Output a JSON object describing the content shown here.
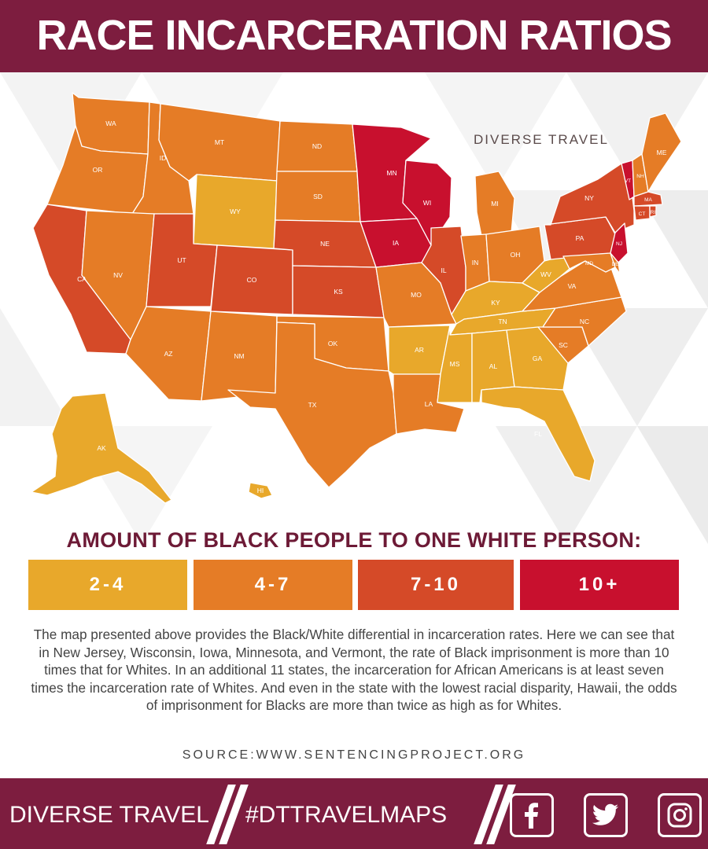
{
  "header": {
    "title": "RACE INCARCERATION RATIOS"
  },
  "brand_tag": "DIVERSE TRAVEL",
  "legend": {
    "title": "AMOUNT OF BLACK PEOPLE TO ONE WHITE PERSON:",
    "items": [
      {
        "label": "2-4",
        "color": "#e8a82b"
      },
      {
        "label": "4-7",
        "color": "#e57c26"
      },
      {
        "label": "7-10",
        "color": "#d54a28"
      },
      {
        "label": "10+",
        "color": "#c8102e"
      }
    ]
  },
  "states": [
    {
      "abbr": "WA",
      "bucket": "4-7"
    },
    {
      "abbr": "OR",
      "bucket": "4-7"
    },
    {
      "abbr": "CA",
      "bucket": "7-10"
    },
    {
      "abbr": "ID",
      "bucket": "4-7"
    },
    {
      "abbr": "NV",
      "bucket": "4-7"
    },
    {
      "abbr": "MT",
      "bucket": "4-7"
    },
    {
      "abbr": "WY",
      "bucket": "2-4"
    },
    {
      "abbr": "UT",
      "bucket": "7-10"
    },
    {
      "abbr": "CO",
      "bucket": "7-10"
    },
    {
      "abbr": "AZ",
      "bucket": "4-7"
    },
    {
      "abbr": "NM",
      "bucket": "4-7"
    },
    {
      "abbr": "ND",
      "bucket": "4-7"
    },
    {
      "abbr": "SD",
      "bucket": "4-7"
    },
    {
      "abbr": "NE",
      "bucket": "7-10"
    },
    {
      "abbr": "KS",
      "bucket": "7-10"
    },
    {
      "abbr": "OK",
      "bucket": "4-7"
    },
    {
      "abbr": "TX",
      "bucket": "4-7"
    },
    {
      "abbr": "MN",
      "bucket": "10+"
    },
    {
      "abbr": "IA",
      "bucket": "10+"
    },
    {
      "abbr": "MO",
      "bucket": "4-7"
    },
    {
      "abbr": "AR",
      "bucket": "2-4"
    },
    {
      "abbr": "LA",
      "bucket": "4-7"
    },
    {
      "abbr": "WI",
      "bucket": "10+"
    },
    {
      "abbr": "IL",
      "bucket": "7-10"
    },
    {
      "abbr": "MI",
      "bucket": "4-7"
    },
    {
      "abbr": "IN",
      "bucket": "4-7"
    },
    {
      "abbr": "OH",
      "bucket": "4-7"
    },
    {
      "abbr": "KY",
      "bucket": "2-4"
    },
    {
      "abbr": "TN",
      "bucket": "2-4"
    },
    {
      "abbr": "MS",
      "bucket": "2-4"
    },
    {
      "abbr": "AL",
      "bucket": "2-4"
    },
    {
      "abbr": "GA",
      "bucket": "2-4"
    },
    {
      "abbr": "FL",
      "bucket": "2-4"
    },
    {
      "abbr": "SC",
      "bucket": "4-7"
    },
    {
      "abbr": "NC",
      "bucket": "4-7"
    },
    {
      "abbr": "VA",
      "bucket": "4-7"
    },
    {
      "abbr": "WV",
      "bucket": "2-4"
    },
    {
      "abbr": "PA",
      "bucket": "7-10"
    },
    {
      "abbr": "NY",
      "bucket": "7-10"
    },
    {
      "abbr": "VT",
      "bucket": "10+"
    },
    {
      "abbr": "NH",
      "bucket": "4-7"
    },
    {
      "abbr": "ME",
      "bucket": "4-7"
    },
    {
      "abbr": "MA",
      "bucket": "7-10"
    },
    {
      "abbr": "CT",
      "bucket": "7-10"
    },
    {
      "abbr": "RI",
      "bucket": "7-10"
    },
    {
      "abbr": "NJ",
      "bucket": "10+"
    },
    {
      "abbr": "MD",
      "bucket": "4-7"
    },
    {
      "abbr": "DE",
      "bucket": "4-7"
    },
    {
      "abbr": "AK",
      "bucket": "2-4"
    },
    {
      "abbr": "HI",
      "bucket": "2-4"
    }
  ],
  "description": "The map presented above provides the Black/White differential in incarceration rates. Here we can see that in New Jersey, Wisconsin, Iowa, Minnesota, and Vermont, the rate of Black imprisonment is more than 10 times that for Whites. In an additional 11 states, the incarceration for African Americans is at least seven times the incarceration rate of Whites. And even in the state with the lowest racial disparity, Hawaii, the odds of imprisonment for Blacks are more than twice as high as for Whites.",
  "source": "SOURCE:WWW.SENTENCINGPROJECT.ORG",
  "footer": {
    "brand": "DIVERSE TRAVEL",
    "hashtag": "#DTTRAVELMAPS",
    "social_icons": [
      "facebook-icon",
      "twitter-icon",
      "instagram-icon"
    ]
  }
}
